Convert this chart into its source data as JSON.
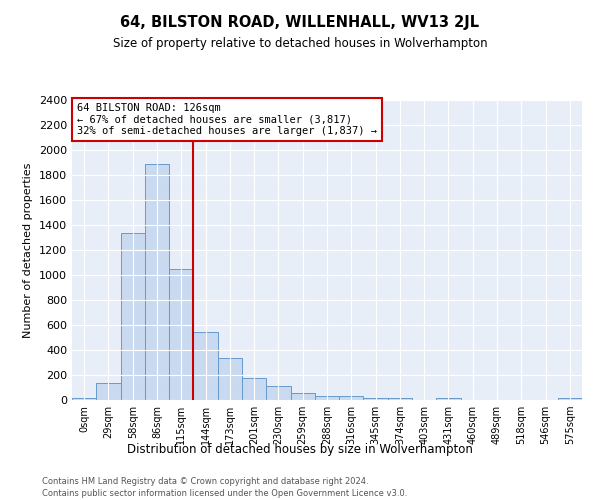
{
  "title": "64, BILSTON ROAD, WILLENHALL, WV13 2JL",
  "subtitle": "Size of property relative to detached houses in Wolverhampton",
  "xlabel": "Distribution of detached houses by size in Wolverhampton",
  "ylabel": "Number of detached properties",
  "footnote1": "Contains HM Land Registry data © Crown copyright and database right 2024.",
  "footnote2": "Contains public sector information licensed under the Open Government Licence v3.0.",
  "annotation_title": "64 BILSTON ROAD: 126sqm",
  "annotation_line2": "← 67% of detached houses are smaller (3,817)",
  "annotation_line3": "32% of semi-detached houses are larger (1,837) →",
  "bar_color": "#c9d9f0",
  "bar_edge_color": "#6699cc",
  "vline_color": "#cc0000",
  "background_color": "#e8eef8",
  "bins": [
    "0sqm",
    "29sqm",
    "58sqm",
    "86sqm",
    "115sqm",
    "144sqm",
    "173sqm",
    "201sqm",
    "230sqm",
    "259sqm",
    "288sqm",
    "316sqm",
    "345sqm",
    "374sqm",
    "403sqm",
    "431sqm",
    "460sqm",
    "489sqm",
    "518sqm",
    "546sqm",
    "575sqm"
  ],
  "values": [
    20,
    135,
    1340,
    1890,
    1045,
    545,
    340,
    175,
    115,
    55,
    35,
    30,
    20,
    15,
    0,
    20,
    0,
    0,
    0,
    0,
    20
  ],
  "vline_position": 5,
  "ylim": [
    0,
    2400
  ],
  "yticks": [
    0,
    200,
    400,
    600,
    800,
    1000,
    1200,
    1400,
    1600,
    1800,
    2000,
    2200,
    2400
  ]
}
